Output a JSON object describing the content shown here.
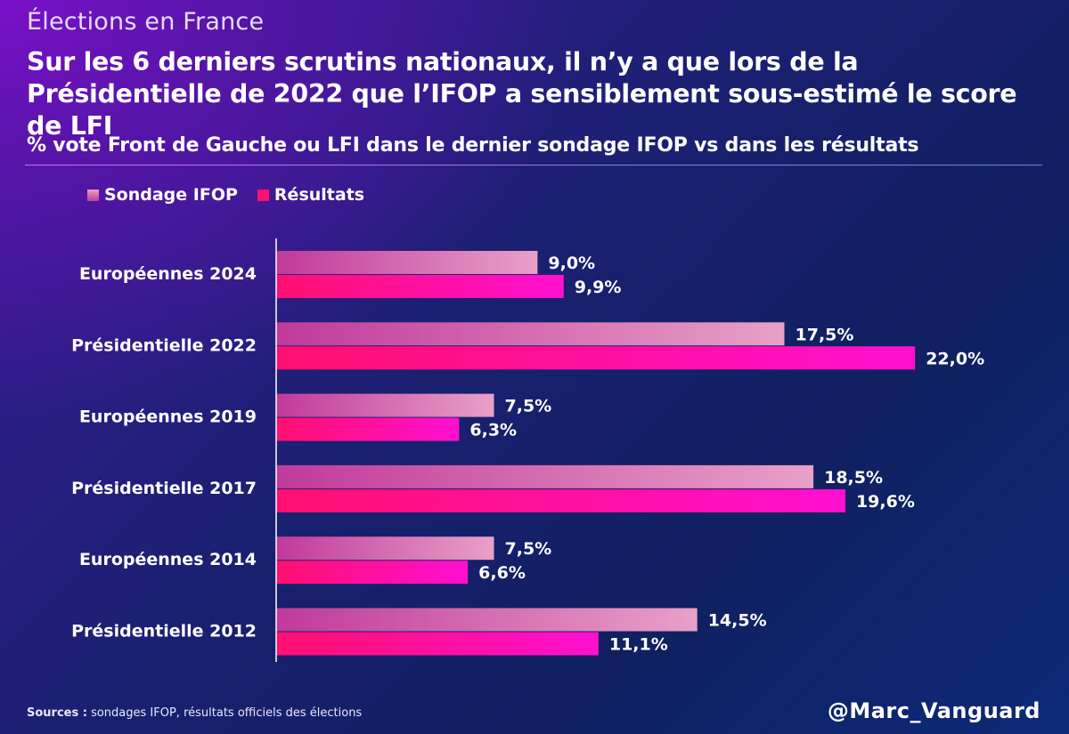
{
  "kicker": "Élections en France",
  "title": "Sur les 6 derniers scrutins nationaux, il n’y a que lors de la Présidentielle de 2022 que l’IFOP a sensiblement sous-estimé le score de LFI",
  "subtitle": "% vote Front de Gauche ou LFI dans le dernier sondage IFOP vs dans les résultats",
  "colors": {
    "sondage_light": "#e8a0c8",
    "sondage_dark": "#c03a9a",
    "resultats_start": "#ff1070",
    "resultats_end": "#ff10d0",
    "axis": "#ffffff"
  },
  "chart_data": {
    "type": "bar",
    "orientation": "horizontal",
    "categories": [
      "Européennes 2024",
      "Présidentielle 2022",
      "Européennes 2019",
      "Présidentielle 2017",
      "Européennes 2014",
      "Présidentielle 2012"
    ],
    "series": [
      {
        "name": "Sondage IFOP",
        "values": [
          9.0,
          17.5,
          7.5,
          18.5,
          7.5,
          14.5
        ],
        "labels": [
          "9,0%",
          "17,5%",
          "7,5%",
          "18,5%",
          "7,5%",
          "14,5%"
        ]
      },
      {
        "name": "Résultats",
        "values": [
          9.9,
          22.0,
          6.3,
          19.6,
          6.6,
          11.1
        ],
        "labels": [
          "9,9%",
          "22,0%",
          "6,3%",
          "19,6%",
          "6,6%",
          "11,1%"
        ]
      }
    ],
    "legend_position": "top-left",
    "grid": false
  },
  "sources_label": "Sources :",
  "sources_text": " sondages IFOP, résultats officiels des élections",
  "handle": "@Marc_Vanguard"
}
